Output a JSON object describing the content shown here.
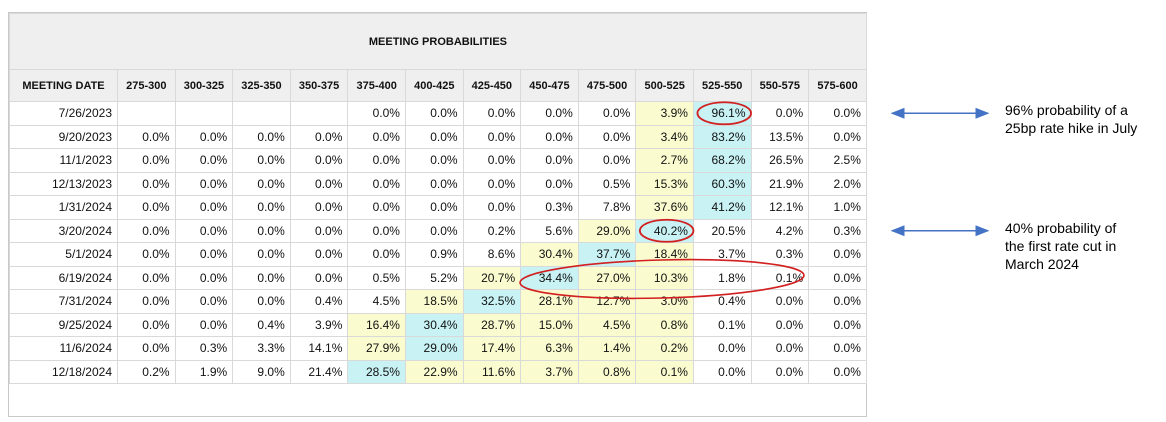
{
  "chart_data": {
    "type": "table",
    "title": "MEETING PROBABILITIES",
    "columns": [
      "MEETING DATE",
      "275-300",
      "300-325",
      "325-350",
      "350-375",
      "375-400",
      "400-425",
      "425-450",
      "450-475",
      "475-500",
      "500-525",
      "525-550",
      "550-575",
      "575-600"
    ],
    "rows": [
      {
        "date": "7/26/2023",
        "values": [
          "",
          "",
          "",
          "",
          "0.0%",
          "0.0%",
          "0.0%",
          "0.0%",
          "0.0%",
          "3.9%",
          "96.1%",
          "0.0%",
          "0.0%"
        ],
        "highlight": [
          0,
          0,
          0,
          0,
          0,
          0,
          0,
          0,
          0,
          1,
          2,
          0,
          0
        ]
      },
      {
        "date": "9/20/2023",
        "values": [
          "0.0%",
          "0.0%",
          "0.0%",
          "0.0%",
          "0.0%",
          "0.0%",
          "0.0%",
          "0.0%",
          "0.0%",
          "3.4%",
          "83.2%",
          "13.5%",
          "0.0%"
        ],
        "highlight": [
          0,
          0,
          0,
          0,
          0,
          0,
          0,
          0,
          0,
          1,
          2,
          0,
          0
        ]
      },
      {
        "date": "11/1/2023",
        "values": [
          "0.0%",
          "0.0%",
          "0.0%",
          "0.0%",
          "0.0%",
          "0.0%",
          "0.0%",
          "0.0%",
          "0.0%",
          "2.7%",
          "68.2%",
          "26.5%",
          "2.5%"
        ],
        "highlight": [
          0,
          0,
          0,
          0,
          0,
          0,
          0,
          0,
          0,
          1,
          2,
          0,
          0
        ]
      },
      {
        "date": "12/13/2023",
        "values": [
          "0.0%",
          "0.0%",
          "0.0%",
          "0.0%",
          "0.0%",
          "0.0%",
          "0.0%",
          "0.0%",
          "0.5%",
          "15.3%",
          "60.3%",
          "21.9%",
          "2.0%"
        ],
        "highlight": [
          0,
          0,
          0,
          0,
          0,
          0,
          0,
          0,
          0,
          1,
          2,
          0,
          0
        ]
      },
      {
        "date": "1/31/2024",
        "values": [
          "0.0%",
          "0.0%",
          "0.0%",
          "0.0%",
          "0.0%",
          "0.0%",
          "0.0%",
          "0.3%",
          "7.8%",
          "37.6%",
          "41.2%",
          "12.1%",
          "1.0%"
        ],
        "highlight": [
          0,
          0,
          0,
          0,
          0,
          0,
          0,
          0,
          0,
          1,
          2,
          0,
          0
        ]
      },
      {
        "date": "3/20/2024",
        "values": [
          "0.0%",
          "0.0%",
          "0.0%",
          "0.0%",
          "0.0%",
          "0.0%",
          "0.2%",
          "5.6%",
          "29.0%",
          "40.2%",
          "20.5%",
          "4.2%",
          "0.3%"
        ],
        "highlight": [
          0,
          0,
          0,
          0,
          0,
          0,
          0,
          0,
          1,
          2,
          0,
          0,
          0
        ]
      },
      {
        "date": "5/1/2024",
        "values": [
          "0.0%",
          "0.0%",
          "0.0%",
          "0.0%",
          "0.0%",
          "0.9%",
          "8.6%",
          "30.4%",
          "37.7%",
          "18.4%",
          "3.7%",
          "0.3%",
          "0.0%"
        ],
        "highlight": [
          0,
          0,
          0,
          0,
          0,
          0,
          0,
          1,
          2,
          1,
          0,
          0,
          0
        ]
      },
      {
        "date": "6/19/2024",
        "values": [
          "0.0%",
          "0.0%",
          "0.0%",
          "0.0%",
          "0.5%",
          "5.2%",
          "20.7%",
          "34.4%",
          "27.0%",
          "10.3%",
          "1.8%",
          "0.1%",
          "0.0%"
        ],
        "highlight": [
          0,
          0,
          0,
          0,
          0,
          0,
          1,
          2,
          1,
          1,
          0,
          0,
          0
        ]
      },
      {
        "date": "7/31/2024",
        "values": [
          "0.0%",
          "0.0%",
          "0.0%",
          "0.4%",
          "4.5%",
          "18.5%",
          "32.5%",
          "28.1%",
          "12.7%",
          "3.0%",
          "0.4%",
          "0.0%",
          "0.0%"
        ],
        "highlight": [
          0,
          0,
          0,
          0,
          0,
          1,
          2,
          1,
          1,
          1,
          0,
          0,
          0
        ]
      },
      {
        "date": "9/25/2024",
        "values": [
          "0.0%",
          "0.0%",
          "0.4%",
          "3.9%",
          "16.4%",
          "30.4%",
          "28.7%",
          "15.0%",
          "4.5%",
          "0.8%",
          "0.1%",
          "0.0%",
          "0.0%"
        ],
        "highlight": [
          0,
          0,
          0,
          0,
          1,
          2,
          1,
          1,
          1,
          1,
          0,
          0,
          0
        ]
      },
      {
        "date": "11/6/2024",
        "values": [
          "0.0%",
          "0.3%",
          "3.3%",
          "14.1%",
          "27.9%",
          "29.0%",
          "17.4%",
          "6.3%",
          "1.4%",
          "0.2%",
          "0.0%",
          "0.0%",
          "0.0%"
        ],
        "highlight": [
          0,
          0,
          0,
          0,
          1,
          2,
          1,
          1,
          1,
          1,
          0,
          0,
          0
        ]
      },
      {
        "date": "12/18/2024",
        "values": [
          "0.2%",
          "1.9%",
          "9.0%",
          "21.4%",
          "28.5%",
          "22.9%",
          "11.6%",
          "3.7%",
          "0.8%",
          "0.1%",
          "0.0%",
          "0.0%",
          "0.0%"
        ],
        "highlight": [
          0,
          0,
          0,
          0,
          2,
          1,
          1,
          1,
          1,
          1,
          0,
          0,
          0
        ]
      }
    ],
    "circled_cells": [
      {
        "row": 0,
        "col": 10
      },
      {
        "row": 5,
        "col": 9
      }
    ],
    "annotations": [
      {
        "lines": [
          "96% probability of a",
          "25bp rate hike in July"
        ],
        "row": 0
      },
      {
        "lines": [
          "40% probability of",
          "the first rate cut in",
          "March 2024"
        ],
        "row": 5
      }
    ],
    "colors": {
      "yellow": "#fbfbd0",
      "cyan": "#c8f2f4",
      "header_bg": "#efefef",
      "circle": "#d21f1f",
      "arrow": "#4472c4"
    }
  }
}
